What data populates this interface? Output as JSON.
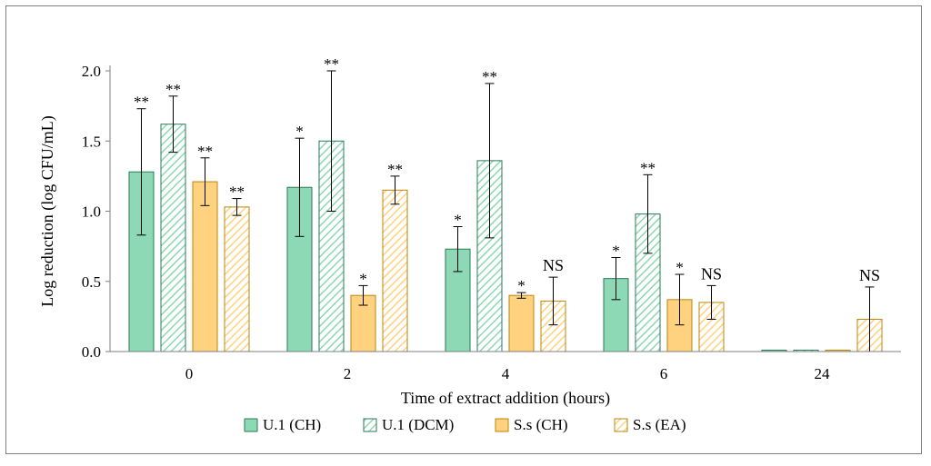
{
  "chart_data": {
    "type": "bar",
    "title": "",
    "xlabel": "Time of extract addition (hours)",
    "ylabel": "Log reduction (log CFU/mL)",
    "ylim": [
      0,
      2.0
    ],
    "yticks": [
      "0.0",
      "0.5",
      "1.0",
      "1.5",
      "2.0"
    ],
    "ytick_values": [
      0,
      0.5,
      1.0,
      1.5,
      2.0
    ],
    "categories": [
      "0",
      "2",
      "4",
      "6",
      "24"
    ],
    "legend_position": "bottom",
    "series": [
      {
        "name": "U.1 (CH)",
        "color": "#8dd8b5",
        "stroke": "#2a7a57",
        "pattern": "solid",
        "values": [
          1.28,
          1.17,
          0.73,
          0.52,
          0.01
        ],
        "errors": [
          0.45,
          0.35,
          0.16,
          0.15,
          0.0
        ],
        "significance": [
          "**",
          "*",
          "*",
          "*",
          ""
        ]
      },
      {
        "name": "U.1 (DCM)",
        "color": "#8dd8b5",
        "stroke": "#2a7a57",
        "pattern": "hatch",
        "values": [
          1.62,
          1.5,
          1.36,
          0.98,
          0.01
        ],
        "errors": [
          0.2,
          0.5,
          0.55,
          0.28,
          0.0
        ],
        "significance": [
          "**",
          "**",
          "**",
          "**",
          ""
        ]
      },
      {
        "name": "S.s (CH)",
        "color": "#ffd27f",
        "stroke": "#b8860b",
        "pattern": "solid",
        "values": [
          1.21,
          0.4,
          0.4,
          0.37,
          0.01
        ],
        "errors": [
          0.17,
          0.07,
          0.02,
          0.18,
          0.0
        ],
        "significance": [
          "**",
          "*",
          "*",
          "*",
          ""
        ]
      },
      {
        "name": "S.s (EA)",
        "color": "#ffd27f",
        "stroke": "#b8860b",
        "pattern": "hatch",
        "values": [
          1.03,
          1.15,
          0.36,
          0.35,
          0.23
        ],
        "errors": [
          0.06,
          0.1,
          0.17,
          0.12,
          0.23
        ],
        "significance": [
          "**",
          "**",
          "NS",
          "NS",
          "NS"
        ]
      }
    ]
  }
}
